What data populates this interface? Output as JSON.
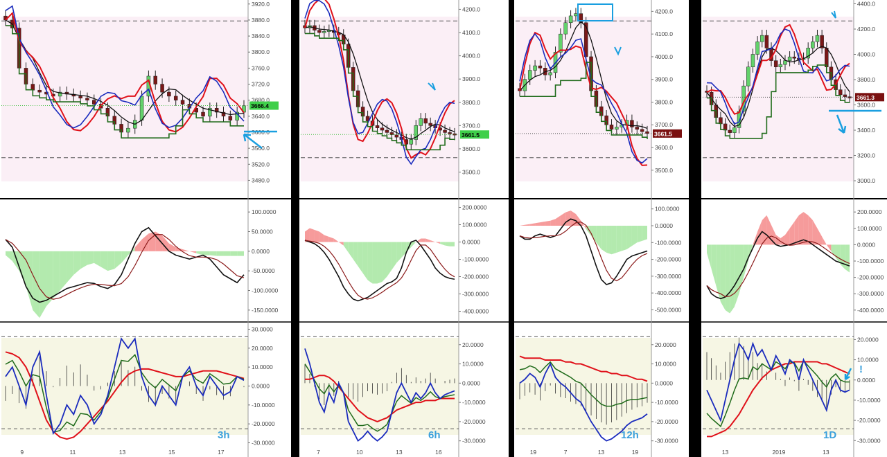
{
  "colors": {
    "up_candle": "#63d26b",
    "down_candle": "#7a1818",
    "red": "#e0111a",
    "blue": "#1a2bbd",
    "black": "#111111",
    "green": "#1f6b1a",
    "darkred": "#8b1a1a",
    "annotation": "#1a9fe0",
    "bg_pink": "#fbeff6",
    "bg_yellow": "#f6f6e4",
    "macd_red": "#f58a8a",
    "macd_green": "#a6e6a0"
  },
  "chart_data": [
    {
      "type": "candlestick",
      "timeframe_label": "3h",
      "x_ticks": [
        "9",
        "11",
        "13",
        "15",
        "17"
      ],
      "price": {
        "ylim": [
          3460,
          3930
        ],
        "y_ticks": [
          "3920.0",
          "3880.0",
          "3840.0",
          "3800.0",
          "3760.0",
          "3720.0",
          "3680.0",
          "3640.0",
          "3600.0",
          "3560.0",
          "3520.0",
          "3480.0"
        ],
        "last_price": "3666.4",
        "close": [
          3880,
          3860,
          3760,
          3720,
          3705,
          3700,
          3695,
          3690,
          3700,
          3695,
          3690,
          3685,
          3680,
          3670,
          3660,
          3640,
          3620,
          3600,
          3610,
          3630,
          3690,
          3740,
          3720,
          3700,
          3690,
          3680,
          3670,
          3660,
          3650,
          3640,
          3660,
          3650,
          3640,
          3630,
          3650,
          3666
        ]
      },
      "macd": {
        "ylim": [
          -175,
          125
        ],
        "y_ticks": [
          "100.0000",
          "50.0000",
          "0.0000",
          "-50.0000",
          "-100.0000",
          "-150.0000"
        ],
        "hist": [
          -10,
          -25,
          -50,
          -90,
          -150,
          -170,
          -140,
          -120,
          -100,
          -80,
          -60,
          -45,
          -35,
          -30,
          -40,
          -50,
          -45,
          -30,
          -10,
          10,
          30,
          45,
          50,
          40,
          20,
          10,
          5,
          0,
          -5,
          -10,
          -10,
          -12,
          -12,
          -12,
          -12,
          -12
        ],
        "macd_line": [
          30,
          10,
          -40,
          -90,
          -120,
          -130,
          -125,
          -115,
          -105,
          -95,
          -90,
          -85,
          -80,
          -82,
          -90,
          -95,
          -85,
          -60,
          -20,
          20,
          50,
          60,
          40,
          20,
          0,
          -10,
          -15,
          -20,
          -15,
          -10,
          -20,
          -40,
          -60,
          -70,
          -80,
          -60
        ]
      },
      "oscillator": {
        "ylim": [
          -32,
          32
        ],
        "y_ticks": [
          "30.0000",
          "20.0000",
          "10.0000",
          "0.0000",
          "-10.0000",
          "-20.0000",
          "-30.0000"
        ],
        "fast": [
          5,
          10,
          0,
          -10,
          10,
          18,
          -5,
          -25,
          -20,
          -10,
          -15,
          -5,
          -10,
          -20,
          -15,
          -5,
          10,
          25,
          20,
          25,
          5,
          -5,
          -10,
          0,
          -5,
          -10,
          5,
          10,
          0,
          -5,
          5,
          0,
          -5,
          -3,
          5,
          3
        ],
        "slow": [
          18,
          17,
          15,
          10,
          2,
          -8,
          -18,
          -24,
          -27,
          -28,
          -27,
          -24,
          -20,
          -16,
          -12,
          -8,
          -3,
          2,
          6,
          8,
          9,
          9,
          8,
          7,
          6,
          5,
          5,
          6,
          7,
          8,
          8,
          8,
          7,
          6,
          5,
          4
        ]
      }
    },
    {
      "type": "candlestick",
      "timeframe_label": "6h",
      "x_ticks": [
        "7",
        "10",
        "13",
        "16"
      ],
      "price": {
        "ylim": [
          3430,
          4240
        ],
        "y_ticks": [
          "4200.0",
          "4100.0",
          "4000.0",
          "3900.0",
          "3800.0",
          "3700.0",
          "3600.0",
          "3500.0"
        ],
        "last_price": "3661.5",
        "close": [
          4120,
          4130,
          4110,
          4100,
          4105,
          4110,
          4100,
          4090,
          4050,
          3950,
          3850,
          3780,
          3740,
          3720,
          3700,
          3690,
          3680,
          3670,
          3660,
          3650,
          3640,
          3620,
          3640,
          3700,
          3730,
          3710,
          3700,
          3690,
          3680,
          3670,
          3665,
          3662
        ]
      },
      "macd": {
        "ylim": [
          -450,
          230
        ],
        "y_ticks": [
          "200.0000",
          "100.0000",
          "0.0000",
          "-100.0000",
          "-200.0000",
          "-300.0000",
          "-400.0000"
        ],
        "hist": [
          60,
          80,
          70,
          60,
          40,
          30,
          20,
          0,
          -20,
          -60,
          -100,
          -140,
          -180,
          -220,
          -240,
          -240,
          -230,
          -200,
          -160,
          -120,
          -90,
          -60,
          -30,
          0,
          20,
          20,
          10,
          0,
          -10,
          -20,
          -25,
          -25
        ],
        "macd_line": [
          10,
          0,
          -10,
          -30,
          -60,
          -100,
          -150,
          -200,
          -260,
          -300,
          -330,
          -340,
          -330,
          -320,
          -300,
          -280,
          -260,
          -240,
          -230,
          -210,
          -150,
          -60,
          0,
          10,
          -20,
          -60,
          -100,
          -150,
          -180,
          -200,
          -210,
          -215
        ]
      },
      "oscillator": {
        "ylim": [
          -33,
          30
        ],
        "y_ticks": [
          "20.0000",
          "10.0000",
          "0.0000",
          "-10.0000",
          "-20.0000",
          "-30.0000"
        ],
        "fast": [
          18,
          10,
          0,
          -10,
          -15,
          -5,
          -10,
          0,
          -5,
          -20,
          -25,
          -30,
          -28,
          -25,
          -28,
          -30,
          -28,
          -25,
          -15,
          -5,
          0,
          -5,
          -10,
          -5,
          -8,
          -5,
          0,
          -5,
          -8,
          -6,
          -5,
          -4
        ],
        "slow": [
          2,
          2,
          3,
          4,
          4,
          3,
          1,
          -2,
          -5,
          -8,
          -11,
          -14,
          -16,
          -18,
          -19,
          -20,
          -19,
          -18,
          -16,
          -14,
          -13,
          -12,
          -11,
          -10,
          -10,
          -9,
          -9,
          -9,
          -8,
          -8,
          -8,
          -8
        ]
      }
    },
    {
      "type": "candlestick",
      "timeframe_label": "12h",
      "x_ticks": [
        "19",
        "7",
        "13",
        "19"
      ],
      "price": {
        "ylim": [
          3420,
          4250
        ],
        "y_ticks": [
          "4200.0",
          "4100.0",
          "4000.0",
          "3900.0",
          "3800.0",
          "3700.0",
          "3600.0",
          "3500.0"
        ],
        "last_price": "3661.5",
        "close": [
          3850,
          3900,
          3940,
          3960,
          3950,
          3920,
          3930,
          4020,
          4100,
          4150,
          4180,
          4190,
          4150,
          4000,
          3850,
          3780,
          3740,
          3700,
          3680,
          3690,
          3700,
          3720,
          3690,
          3680,
          3670,
          3662
        ]
      },
      "macd": {
        "ylim": [
          -560,
          140
        ],
        "y_ticks": [
          "100.0000",
          "0.0000",
          "-100.0000",
          "-200.0000",
          "-300.0000",
          "-400.0000",
          "-500.0000"
        ],
        "hist": [
          0,
          5,
          10,
          15,
          20,
          25,
          30,
          40,
          60,
          80,
          90,
          70,
          30,
          -20,
          -60,
          -100,
          -140,
          -160,
          -170,
          -160,
          -150,
          -140,
          -120,
          -100,
          -90,
          -80
        ],
        "macd_line": [
          -60,
          -80,
          -80,
          -60,
          -50,
          -60,
          -70,
          -60,
          -20,
          20,
          40,
          30,
          0,
          -60,
          -150,
          -240,
          -320,
          -350,
          -340,
          -300,
          -250,
          -200,
          -180,
          -170,
          -160,
          -150
        ]
      },
      "oscillator": {
        "ylim": [
          -33,
          30
        ],
        "y_ticks": [
          "20.0000",
          "10.0000",
          "0.0000",
          "-10.0000",
          "-20.0000",
          "-30.0000"
        ],
        "fast": [
          0,
          2,
          5,
          3,
          -2,
          5,
          10,
          3,
          0,
          -2,
          -5,
          -8,
          -10,
          -15,
          -20,
          -24,
          -28,
          -30,
          -29,
          -27,
          -25,
          -22,
          -20,
          -19,
          -18,
          -16
        ],
        "slow": [
          14,
          13,
          13,
          13,
          13,
          12,
          12,
          12,
          12,
          11,
          11,
          10,
          10,
          9,
          8,
          7,
          6,
          6,
          5,
          5,
          4,
          4,
          3,
          2,
          2,
          1
        ]
      }
    },
    {
      "type": "candlestick",
      "timeframe_label": "1D",
      "x_ticks": [
        "13",
        "2019",
        "13"
      ],
      "price": {
        "ylim": [
          2940,
          4430
        ],
        "y_ticks": [
          "4400.0",
          "4200.0",
          "4000.0",
          "3800.0",
          "3600.0",
          "3400.0",
          "3200.0",
          "3000.0"
        ],
        "last_price": "3661.3",
        "close": [
          3700,
          3600,
          3500,
          3450,
          3400,
          3380,
          3420,
          3550,
          3750,
          3900,
          4000,
          4100,
          4150,
          4050,
          3950,
          3900,
          3920,
          3950,
          3980,
          3970,
          3960,
          3970,
          4050,
          4100,
          4150,
          4050,
          3900,
          3800,
          3720,
          3680,
          3665,
          3661
        ]
      },
      "macd": {
        "ylim": [
          -460,
          260
        ],
        "y_ticks": [
          "200.0000",
          "100.0000",
          "0.0000",
          "-100.0000",
          "-200.0000",
          "-300.0000",
          "-400.0000"
        ],
        "hist": [
          -50,
          -150,
          -250,
          -350,
          -400,
          -420,
          -380,
          -300,
          -200,
          -100,
          0,
          80,
          150,
          180,
          120,
          60,
          40,
          60,
          100,
          140,
          180,
          200,
          180,
          150,
          100,
          50,
          0,
          -40,
          -80,
          -120,
          -150,
          -170
        ],
        "macd_line": [
          -250,
          -300,
          -320,
          -330,
          -320,
          -290,
          -250,
          -200,
          -150,
          -80,
          -20,
          40,
          80,
          60,
          30,
          0,
          -10,
          -5,
          0,
          10,
          20,
          30,
          20,
          0,
          -20,
          -40,
          -60,
          -80,
          -100,
          -110,
          -120,
          -130
        ]
      },
      "oscillator": {
        "ylim": [
          -33,
          27
        ],
        "y_ticks": [
          "20.0000",
          "10.0000",
          "0.0000",
          "-10.0000",
          "-20.0000",
          "-30.0000"
        ],
        "fast": [
          -5,
          -10,
          -15,
          -20,
          -10,
          0,
          10,
          18,
          15,
          10,
          18,
          12,
          15,
          10,
          5,
          12,
          8,
          3,
          10,
          8,
          0,
          10,
          5,
          0,
          -5,
          -10,
          -15,
          -5,
          0,
          -5,
          -6,
          -5
        ],
        "slow": [
          -28,
          -28,
          -27,
          -26,
          -25,
          -23,
          -20,
          -17,
          -13,
          -9,
          -5,
          -2,
          1,
          3,
          5,
          6,
          7,
          8,
          8,
          9,
          9,
          9,
          9,
          9,
          9,
          8,
          8,
          7,
          6,
          5,
          4,
          3
        ]
      }
    }
  ]
}
